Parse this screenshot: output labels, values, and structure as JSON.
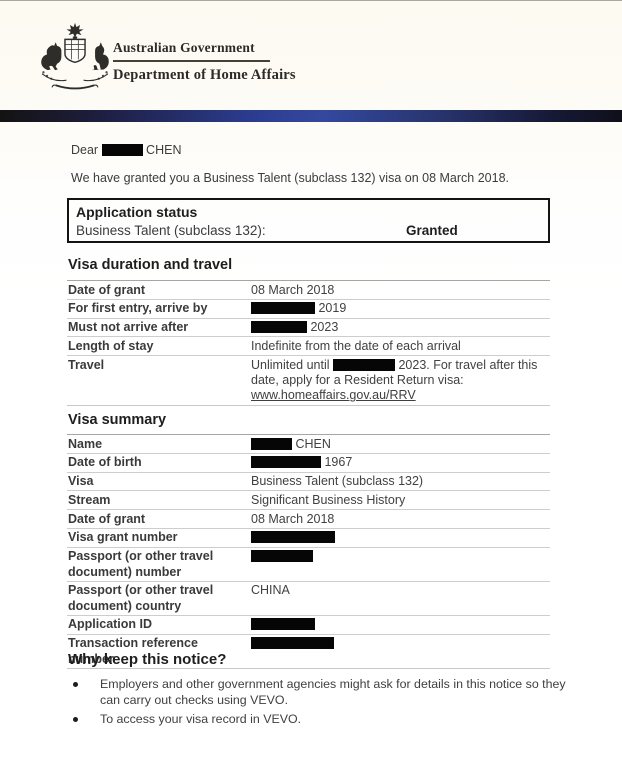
{
  "header": {
    "logo": "australian-coat-of-arms",
    "government": "Australian Government",
    "department": "Department of Home Affairs"
  },
  "letter": {
    "salutation_parts": [
      {
        "text": "Dear "
      },
      {
        "redacted": true,
        "width": 41
      },
      {
        "text": " CHEN"
      }
    ],
    "intro": "We have granted you a Business Talent (subclass 132) visa on 08 March 2018."
  },
  "application_status": {
    "title": "Application status",
    "row_label": "Business Talent (subclass 132):",
    "row_value": "Granted"
  },
  "visa_duration_travel": {
    "title": "Visa duration and travel",
    "rows": [
      {
        "label": "Date of grant",
        "parts": [
          {
            "text": "08 March 2018"
          }
        ]
      },
      {
        "label": "For first entry, arrive by",
        "parts": [
          {
            "redacted": true,
            "width": 64
          },
          {
            "text": " 2019"
          }
        ]
      },
      {
        "label": "Must not arrive after",
        "parts": [
          {
            "redacted": true,
            "width": 56
          },
          {
            "text": " 2023"
          }
        ]
      },
      {
        "label": "Length of stay",
        "parts": [
          {
            "text": "Indefinite from the date of each arrival"
          }
        ]
      },
      {
        "label": "Travel",
        "parts": [
          {
            "text": "Unlimited until "
          },
          {
            "redacted": true,
            "width": 62
          },
          {
            "text": " 2023. For travel after this date, apply for a Resident Return visa: "
          },
          {
            "text": "www.homeaffairs.gov.au/RRV",
            "link": true
          }
        ]
      }
    ]
  },
  "visa_summary": {
    "title": "Visa summary",
    "rows": [
      {
        "label": "Name",
        "parts": [
          {
            "redacted": true,
            "width": 41
          },
          {
            "text": " CHEN"
          }
        ]
      },
      {
        "label": "Date of birth",
        "parts": [
          {
            "redacted": true,
            "width": 70
          },
          {
            "text": " 1967"
          }
        ]
      },
      {
        "label": "Visa",
        "parts": [
          {
            "text": "Business Talent (subclass 132)"
          }
        ]
      },
      {
        "label": "Stream",
        "parts": [
          {
            "text": "Significant Business History"
          }
        ]
      },
      {
        "label": "Date of grant",
        "parts": [
          {
            "text": "08 March 2018"
          }
        ]
      },
      {
        "label": "Visa grant number",
        "parts": [
          {
            "redacted": true,
            "width": 84
          }
        ]
      },
      {
        "label": "Passport (or other travel document) number",
        "parts": [
          {
            "redacted": true,
            "width": 62
          }
        ]
      },
      {
        "label": "Passport (or other travel document) country",
        "parts": [
          {
            "text": "CHINA"
          }
        ]
      },
      {
        "label": "Application ID",
        "parts": [
          {
            "redacted": true,
            "width": 64
          }
        ]
      },
      {
        "label": "Transaction reference number",
        "parts": [
          {
            "redacted": true,
            "width": 83
          }
        ]
      }
    ]
  },
  "why_keep": {
    "title": "Why keep this notice?",
    "bullets": [
      "Employers and other government agencies might ask for details in this notice so they can carry out checks using VEVO.",
      "To access your visa record in VEVO."
    ]
  }
}
